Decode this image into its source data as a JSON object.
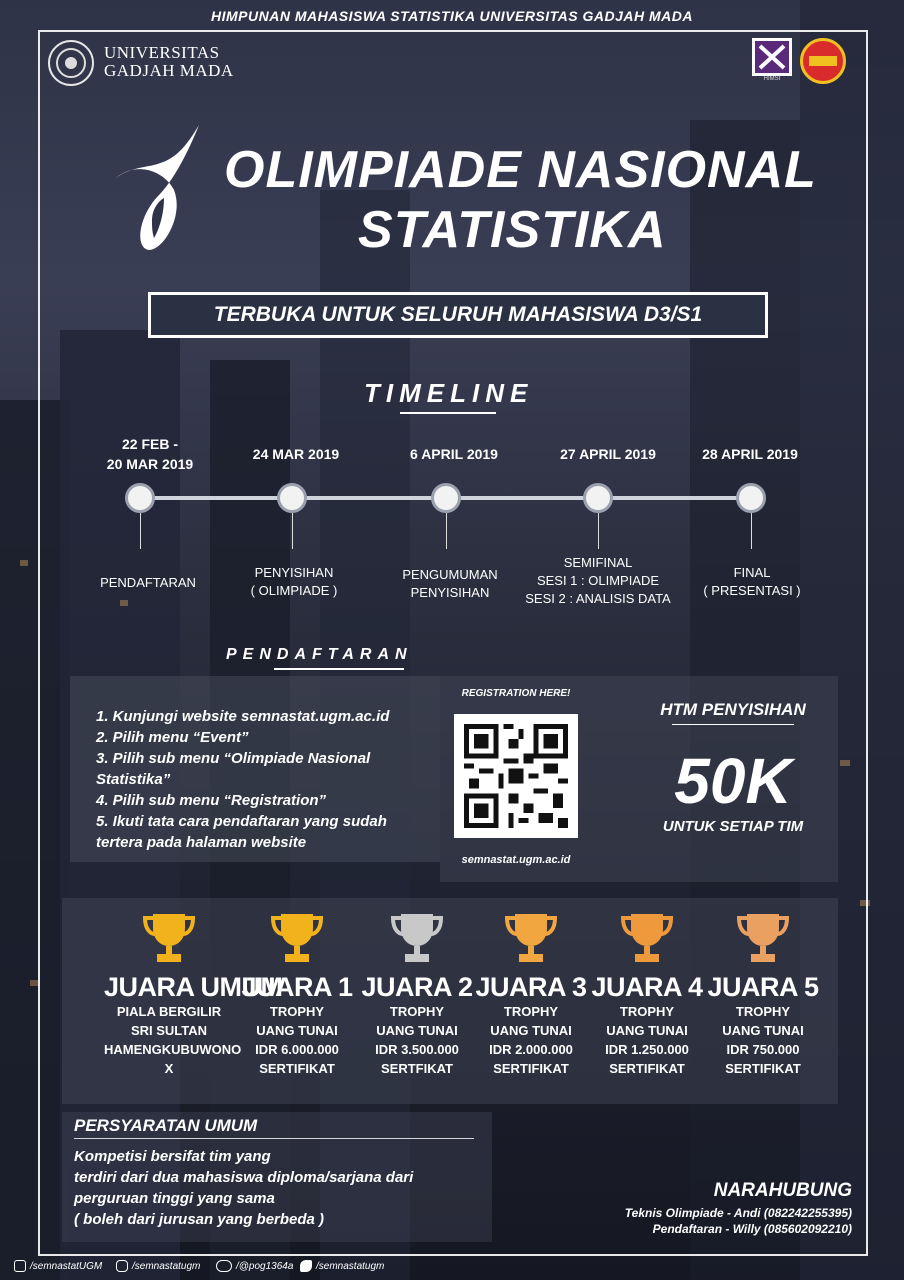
{
  "header": {
    "org_title": "HIMPUNAN MAHASISWA STATISTIKA UNIVERSITAS GADJAH MADA",
    "university_line1": "UNIVERSITAS",
    "university_line2": "GADJAH MADA",
    "hms_logo_caption": "HIMSI"
  },
  "title": {
    "line1": "OLIMPIADE NASIONAL",
    "line2": "STATISTIKA",
    "banner": "TERBUKA UNTUK SELURUH MAHASISWA D3/S1"
  },
  "timeline": {
    "heading": "TIMELINE",
    "items": [
      {
        "date": "22 FEB -\n20 MAR 2019",
        "date_a": "22 FEB -",
        "date_b": "20 MAR 2019",
        "event_a": "PENDAFTARAN",
        "event_b": "",
        "event_c": ""
      },
      {
        "date_a": "24 MAR 2019",
        "date_b": "",
        "event_a": "PENYISIHAN",
        "event_b": "( OLIMPIADE )",
        "event_c": ""
      },
      {
        "date_a": "6 APRIL 2019",
        "date_b": "",
        "event_a": "PENGUMUMAN",
        "event_b": "PENYISIHAN",
        "event_c": ""
      },
      {
        "date_a": "27 APRIL 2019",
        "date_b": "",
        "event_a": "SEMIFINAL",
        "event_b": "SESI 1 : OLIMPIADE",
        "event_c": "SESI 2 : ANALISIS DATA"
      },
      {
        "date_a": "28 APRIL 2019",
        "date_b": "",
        "event_a": "FINAL",
        "event_b": "( PRESENTASI )",
        "event_c": ""
      }
    ]
  },
  "registration": {
    "heading": "PENDAFTARAN",
    "steps": [
      "1. Kunjungi website semnastat.ugm.ac.id",
      "2. Pilih menu “Event”",
      "3. Pilih sub menu “Olimpiade Nasional Statistika”",
      "4. Pilih sub menu “Registration”",
      "5. Ikuti tata cara pendaftaran yang sudah tertera pada halaman website"
    ],
    "qr_caption": "REGISTRATION HERE!",
    "qr_url": "semnastat.ugm.ac.id"
  },
  "fee": {
    "title": "HTM PENYISIHAN",
    "amount": "50K",
    "note": "UNTUK SETIAP TIM"
  },
  "prizes": [
    {
      "name": "JUARA UMUM",
      "l1": "PIALA BERGILIR",
      "l2": "SRI SULTAN",
      "l3": "HAMENGKUBUWONO X",
      "l4": "",
      "color": "#f2b21c"
    },
    {
      "name": "JUARA 1",
      "l1": "TROPHY",
      "l2": "UANG TUNAI",
      "l3": "IDR 6.000.000",
      "l4": "SERTIFIKAT",
      "color": "#f2b21c"
    },
    {
      "name": "JUARA 2",
      "l1": "TROPHY",
      "l2": "UANG TUNAI",
      "l3": "IDR 3.500.000",
      "l4": "SERTFIKAT",
      "color": "#c8c8c8"
    },
    {
      "name": "JUARA 3",
      "l1": "TROPHY",
      "l2": "UANG TUNAI",
      "l3": "IDR 2.000.000",
      "l4": "SERTIFIKAT",
      "color": "#f2a640"
    },
    {
      "name": "JUARA 4",
      "l1": "TROPHY",
      "l2": "UANG TUNAI",
      "l3": "IDR 1.250.000",
      "l4": "SERTIFIKAT",
      "color": "#ee9a3c"
    },
    {
      "name": "JUARA 5",
      "l1": "TROPHY",
      "l2": "UANG TUNAI",
      "l3": "IDR 750.000",
      "l4": "SERTIFIKAT",
      "color": "#e9a060"
    }
  ],
  "requirements": {
    "heading": "PERSYARATAN UMUM",
    "l1": "Kompetisi bersifat tim yang",
    "l2": "terdiri dari dua mahasiswa  diploma/sarjana dari",
    "l3": "perguruan tinggi yang sama",
    "l4": "( boleh dari jurusan yang berbeda )"
  },
  "contact": {
    "heading": "NARAHUBUNG",
    "line1": "Teknis Olimpiade - Andi (082242255395)",
    "line2": "Pendaftaran - Willy (085602092210)"
  },
  "social": {
    "facebook": "/semnastatUGM",
    "instagram": "/semnastatugm",
    "line": "/@pog1364a",
    "twitter": "/semnastatugm"
  },
  "icons": [
    "ugm-seal-icon",
    "hms-logo-icon",
    "badge-logo-icon",
    "flame-logo-icon",
    "trophy-icon",
    "facebook-icon",
    "instagram-icon",
    "line-icon",
    "twitter-icon"
  ]
}
